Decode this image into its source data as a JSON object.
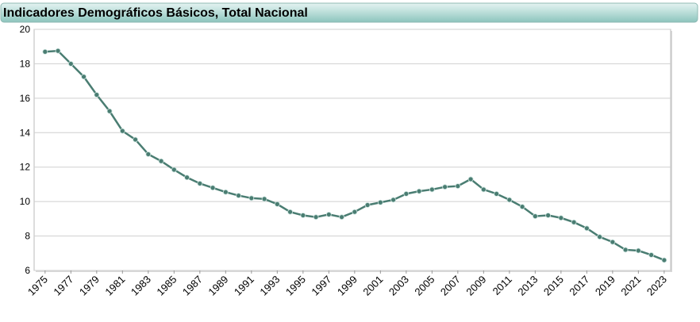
{
  "chart_data": {
    "type": "line",
    "title": "Indicadores Demográficos Básicos, Total Nacional",
    "x": [
      1975,
      1976,
      1977,
      1978,
      1979,
      1980,
      1981,
      1982,
      1983,
      1984,
      1985,
      1986,
      1987,
      1988,
      1989,
      1990,
      1991,
      1992,
      1993,
      1994,
      1995,
      1996,
      1997,
      1998,
      1999,
      2000,
      2001,
      2002,
      2003,
      2004,
      2005,
      2006,
      2007,
      2008,
      2009,
      2010,
      2011,
      2012,
      2013,
      2014,
      2015,
      2016,
      2017,
      2018,
      2019,
      2020,
      2021,
      2022,
      2023
    ],
    "values": [
      18.7,
      18.75,
      18.0,
      17.25,
      16.2,
      15.25,
      14.1,
      13.6,
      12.75,
      12.35,
      11.85,
      11.4,
      11.05,
      10.8,
      10.55,
      10.35,
      10.2,
      10.15,
      9.85,
      9.4,
      9.2,
      9.1,
      9.25,
      9.1,
      9.4,
      9.8,
      9.95,
      10.1,
      10.45,
      10.6,
      10.7,
      10.85,
      10.9,
      11.3,
      10.7,
      10.45,
      10.1,
      9.7,
      9.15,
      9.2,
      9.05,
      8.8,
      8.45,
      7.95,
      7.65,
      7.2,
      7.15,
      6.9,
      6.6
    ],
    "color": "#4a7d72",
    "xlim": [
      1974.15,
      2023.5
    ],
    "xticks": [
      1975,
      1977,
      1979,
      1981,
      1983,
      1985,
      1987,
      1989,
      1991,
      1993,
      1995,
      1997,
      1999,
      2001,
      2003,
      2005,
      2007,
      2009,
      2011,
      2013,
      2015,
      2017,
      2019,
      2021,
      2023
    ],
    "ylim": [
      6,
      20
    ],
    "yticks": [
      6,
      8,
      10,
      12,
      14,
      16,
      18,
      20
    ],
    "grid": true
  }
}
